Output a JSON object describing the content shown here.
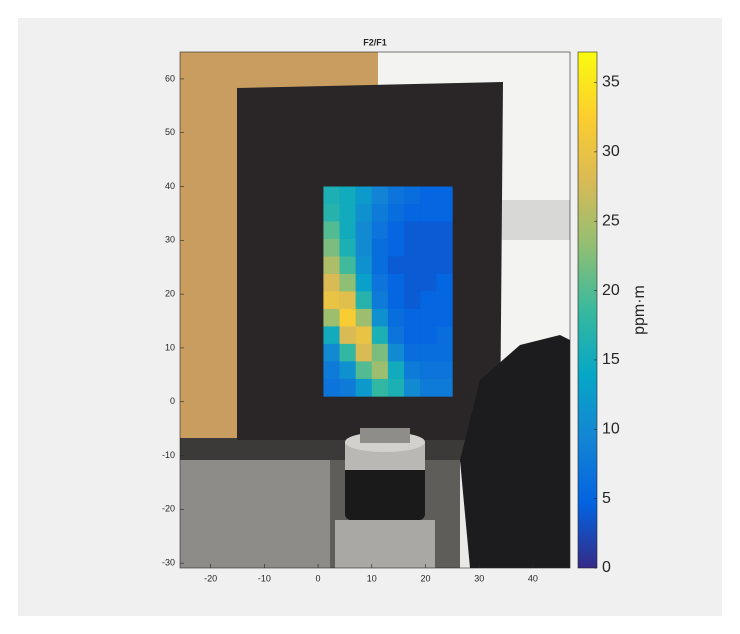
{
  "chart_data": {
    "type": "heatmap",
    "title": "F2/F1",
    "colorbar_label": "ppm·m",
    "xlim": [
      -25.7,
      46.9
    ],
    "xticks": [
      -20,
      -10,
      0,
      10,
      20,
      30,
      40
    ],
    "ylim": [
      -30.9,
      65
    ],
    "yticks": [
      -30,
      -20,
      -10,
      0,
      10,
      20,
      30,
      40,
      50,
      60
    ],
    "clim": [
      0,
      37.2
    ],
    "cticks": [
      0,
      5,
      10,
      15,
      20,
      25,
      30,
      35
    ],
    "colormap": [
      "#352a87",
      "#0363e1",
      "#1485d4",
      "#06a7c6",
      "#38b99e",
      "#92bf73",
      "#d9ba56",
      "#fcce2e",
      "#f9fb0e"
    ],
    "x_edges": [
      1,
      4,
      7,
      10,
      13,
      16,
      19,
      22,
      25
    ],
    "y_edges": [
      40,
      36.75,
      33.5,
      30.25,
      27,
      23.75,
      20.5,
      17.25,
      14,
      10.75,
      7.5,
      4.25,
      1
    ],
    "values": [
      [
        16,
        15,
        12,
        9,
        7,
        6,
        5,
        5
      ],
      [
        17,
        15,
        11,
        8,
        6,
        5,
        5,
        5
      ],
      [
        20,
        15,
        10,
        7,
        5,
        4,
        4,
        4
      ],
      [
        22,
        16,
        10,
        6,
        5,
        4,
        4,
        4
      ],
      [
        25,
        19,
        11,
        6,
        4,
        4,
        4,
        4
      ],
      [
        28,
        23,
        13,
        7,
        5,
        4,
        4,
        5
      ],
      [
        30,
        29,
        17,
        8,
        5,
        4,
        5,
        5
      ],
      [
        24,
        32,
        24,
        11,
        6,
        5,
        5,
        5
      ],
      [
        15,
        28,
        30,
        16,
        7,
        5,
        5,
        6
      ],
      [
        10,
        18,
        28,
        22,
        10,
        6,
        6,
        6
      ],
      [
        8,
        11,
        20,
        24,
        15,
        8,
        7,
        7
      ],
      [
        7,
        8,
        12,
        18,
        16,
        10,
        8,
        8
      ]
    ]
  }
}
